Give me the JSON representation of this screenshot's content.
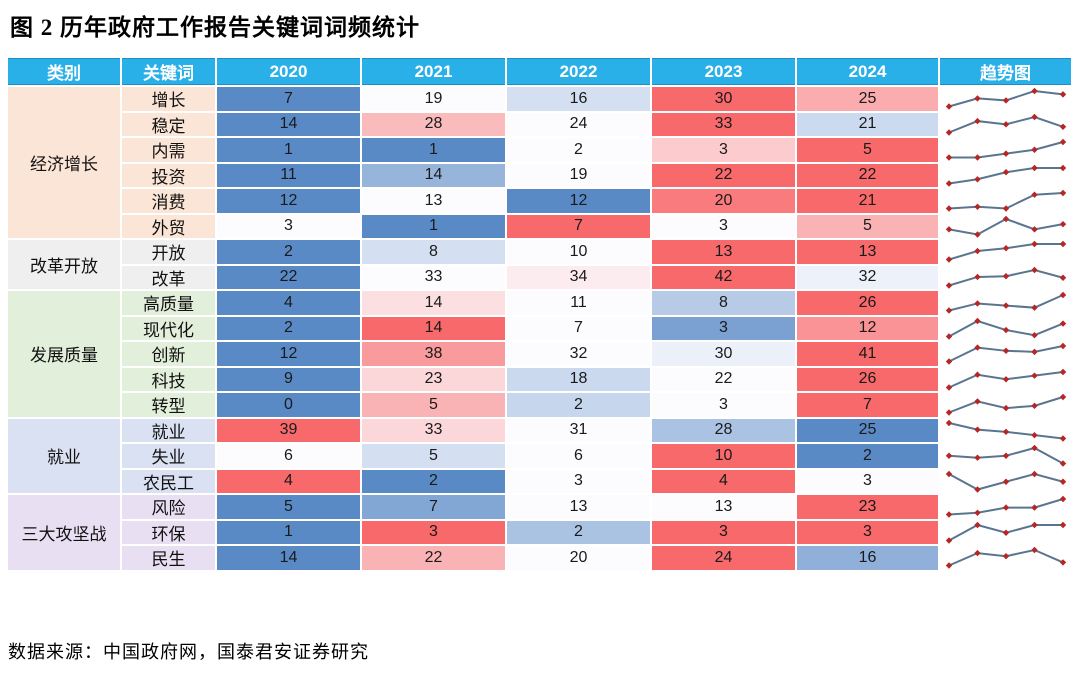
{
  "title": "图 2 历年政府工作报告关键词词频统计",
  "source": "数据来源：中国政府网，国泰君安证券研究",
  "table": {
    "headers": [
      "类别",
      "关键词",
      "2020",
      "2021",
      "2022",
      "2023",
      "2024",
      "趋势图"
    ]
  },
  "style": {
    "header_bg": "#2AB0E8",
    "header_text": "#FFFFFF",
    "scale_min_color": "#5A8AC6",
    "scale_mid_color": "#FCFCFF",
    "scale_max_color": "#F8696B",
    "value_text_color": "#1A1A1A",
    "sparkline_line_color": "#5A7590",
    "sparkline_marker_color": "#B62626"
  },
  "chart_data": {
    "type": "heatmap",
    "title": "历年政府工作报告关键词词频统计",
    "columns": [
      "2020",
      "2021",
      "2022",
      "2023",
      "2024"
    ],
    "legend_note": "每行按最小值(蓝)-中位数(白)-最大值(红)三色色阶着色；趋势图列为该行词频折线",
    "groups": [
      {
        "category": "经济增长",
        "color": "#FBE5D6",
        "rows": [
          {
            "keyword": "增长",
            "values": [
              7,
              19,
              16,
              30,
              25
            ]
          },
          {
            "keyword": "稳定",
            "values": [
              14,
              28,
              24,
              33,
              21
            ]
          },
          {
            "keyword": "内需",
            "values": [
              1,
              1,
              2,
              3,
              5
            ]
          },
          {
            "keyword": "投资",
            "values": [
              11,
              14,
              19,
              22,
              22
            ]
          },
          {
            "keyword": "消费",
            "values": [
              12,
              13,
              12,
              20,
              21
            ]
          },
          {
            "keyword": "外贸",
            "values": [
              3,
              1,
              7,
              3,
              5
            ]
          }
        ]
      },
      {
        "category": "改革开放",
        "color": "#EFEFEF",
        "rows": [
          {
            "keyword": "开放",
            "values": [
              2,
              8,
              10,
              13,
              13
            ]
          },
          {
            "keyword": "改革",
            "values": [
              22,
              33,
              34,
              42,
              32
            ]
          }
        ]
      },
      {
        "category": "发展质量",
        "color": "#E2EFDA",
        "rows": [
          {
            "keyword": "高质量",
            "values": [
              4,
              14,
              11,
              8,
              26
            ]
          },
          {
            "keyword": "现代化",
            "values": [
              2,
              14,
              7,
              3,
              12
            ]
          },
          {
            "keyword": "创新",
            "values": [
              12,
              38,
              32,
              30,
              41
            ]
          },
          {
            "keyword": "科技",
            "values": [
              9,
              23,
              18,
              22,
              26
            ]
          },
          {
            "keyword": "转型",
            "values": [
              0,
              5,
              2,
              3,
              7
            ]
          }
        ]
      },
      {
        "category": "就业",
        "color": "#D9E1F2",
        "rows": [
          {
            "keyword": "就业",
            "values": [
              39,
              33,
              31,
              28,
              25
            ]
          },
          {
            "keyword": "失业",
            "values": [
              6,
              5,
              6,
              10,
              2
            ]
          },
          {
            "keyword": "农民工",
            "values": [
              4,
              2,
              3,
              4,
              3
            ]
          }
        ]
      },
      {
        "category": "三大攻坚战",
        "color": "#E8E0F2",
        "rows": [
          {
            "keyword": "风险",
            "values": [
              5,
              7,
              13,
              13,
              23
            ]
          },
          {
            "keyword": "环保",
            "values": [
              1,
              3,
              2,
              3,
              3
            ]
          },
          {
            "keyword": "民生",
            "values": [
              14,
              22,
              20,
              24,
              16
            ]
          }
        ]
      }
    ]
  }
}
